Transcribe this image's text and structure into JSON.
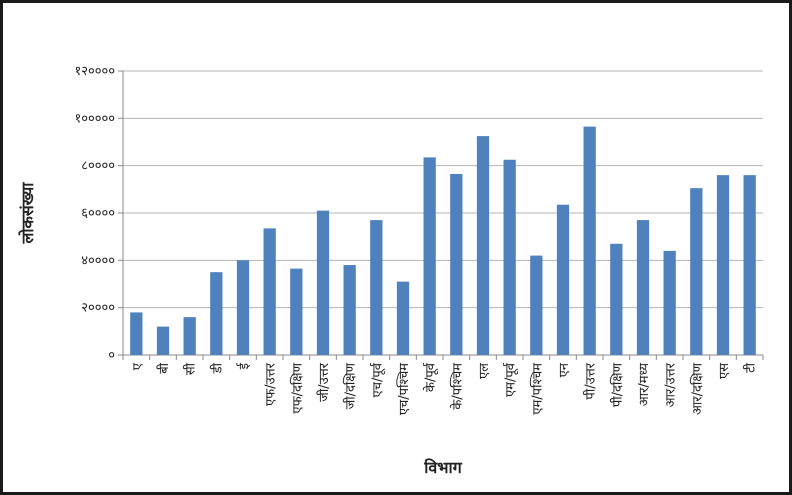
{
  "chart_data": {
    "type": "bar",
    "xlabel": "विभाग",
    "ylabel": "लोकसंख्या",
    "ylim": [
      0,
      120000
    ],
    "yticks": [
      0,
      20000,
      40000,
      60000,
      80000,
      100000,
      120000
    ],
    "ytick_labels": [
      "०",
      "२००००",
      "४००००",
      "६००००",
      "८००००",
      "१०००००",
      "१२००००"
    ],
    "grid": true,
    "legend": "none",
    "bar_color": "#4f81bd",
    "categories": [
      "ए",
      "बी",
      "सी",
      "डी",
      "ई",
      "एफ/उत्तर",
      "एफ/दक्षिण",
      "जी/उत्तर",
      "जी/दक्षिण",
      "एच/पूर्व",
      "एच/पश्चिम",
      "के/पूर्व",
      "के/पश्चिम",
      "एल",
      "एम/पूर्व",
      "एम/पश्चिम",
      "एन",
      "पी/उत्तर",
      "पी/दक्षिण",
      "आर/मध्य",
      "आर/उत्तर",
      "आर/दक्षिण",
      "एस",
      "टी"
    ],
    "values": [
      18000,
      12000,
      16000,
      35000,
      40000,
      53500,
      36500,
      61000,
      38000,
      57000,
      31000,
      83500,
      76500,
      92500,
      82500,
      42000,
      63500,
      96500,
      47000,
      57000,
      44000,
      70500,
      76000,
      76000
    ]
  }
}
